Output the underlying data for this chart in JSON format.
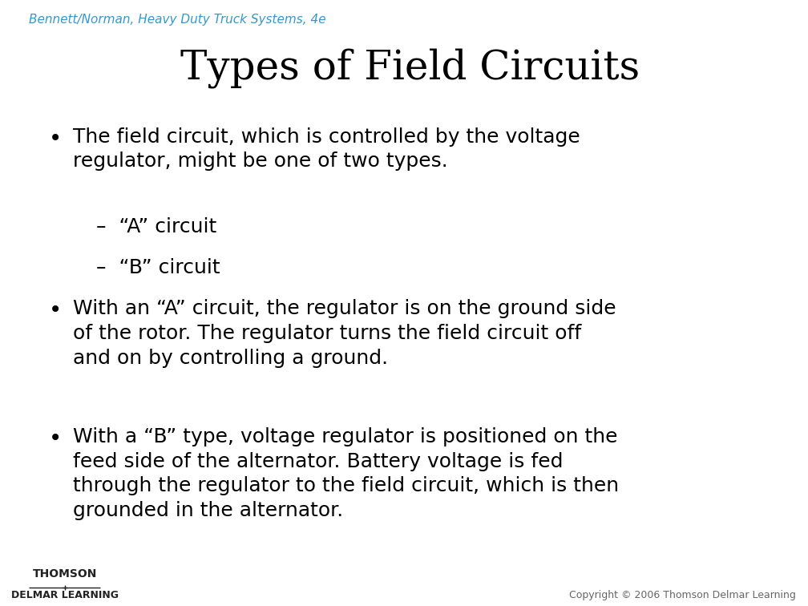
{
  "title": "Types of Field Circuits",
  "title_fontsize": 36,
  "title_color": "#000000",
  "background_color": "#ffffff",
  "header_text": "Bennett/Norman, Heavy Duty Truck Systems, 4e",
  "header_color": "#3399cc",
  "header_fontsize": 11,
  "footer_left_line1": "THOMSON",
  "footer_left_line2": "DELMAR LEARNING",
  "footer_right": "Copyright © 2006 Thomson Delmar Learning",
  "footer_fontsize": 9,
  "bullet_fontsize": 18,
  "bullet_color": "#000000",
  "bullets": [
    {
      "level": 0,
      "text": "The field circuit, which is controlled by the voltage\nregulator, might be one of two types."
    },
    {
      "level": 1,
      "text": "–  “A” circuit"
    },
    {
      "level": 1,
      "text": "–  “B” circuit"
    },
    {
      "level": 0,
      "text": "With an “A” circuit, the regulator is on the ground side\nof the rotor. The regulator turns the field circuit off\nand on by controlling a ground."
    },
    {
      "level": 0,
      "text": "With a “B” type, voltage regulator is positioned on the\nfeed side of the alternator. Battery voltage is fed\nthrough the regulator to the field circuit, which is then\ngrounded in the alternator."
    }
  ]
}
